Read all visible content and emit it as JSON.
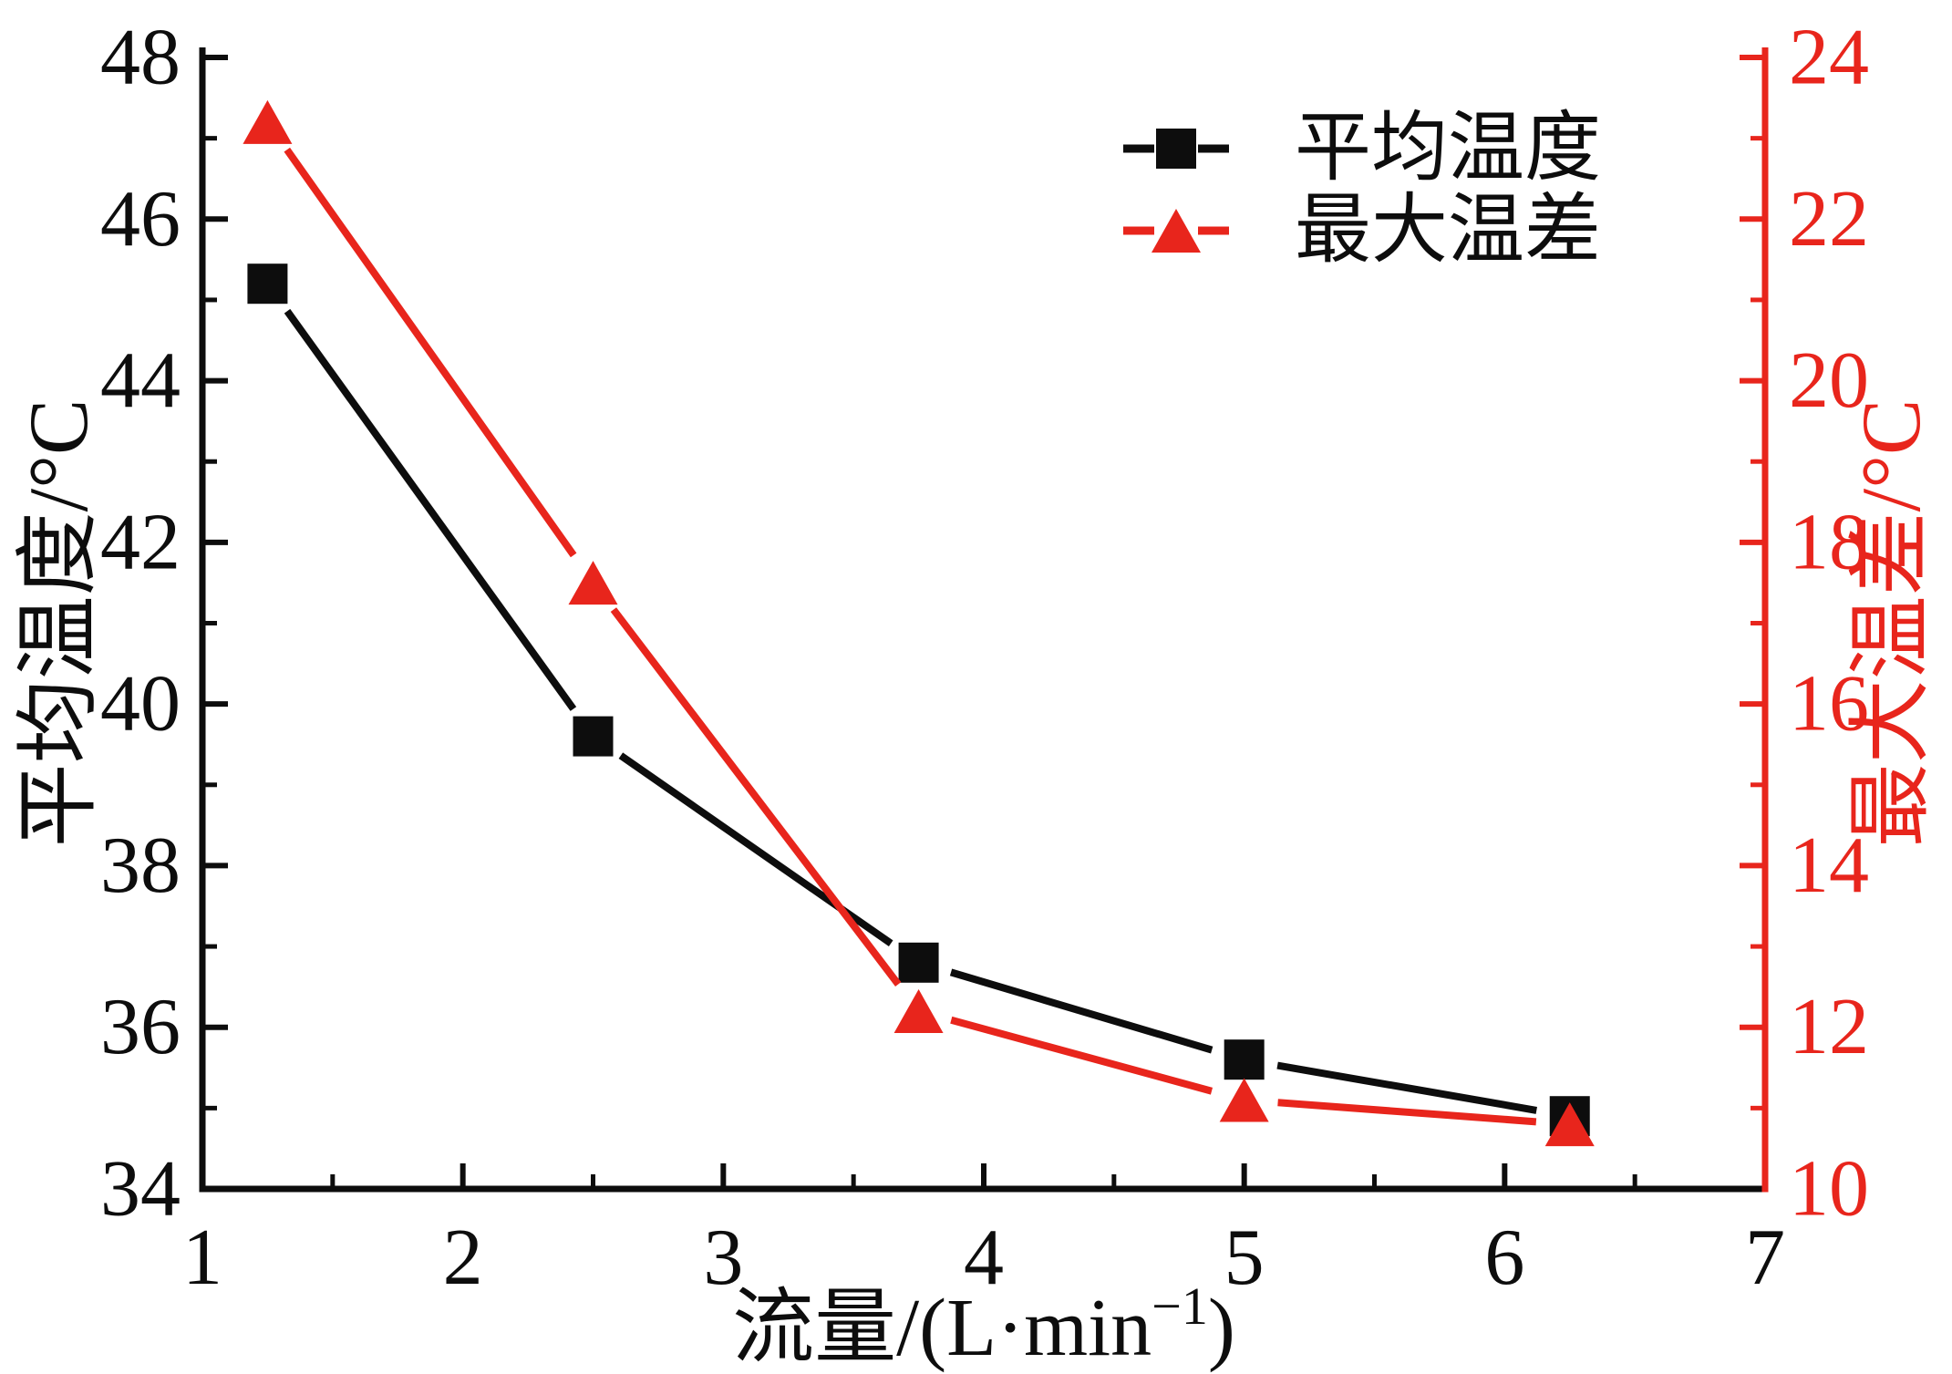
{
  "chart_data": {
    "type": "line",
    "x": [
      1.25,
      2.5,
      3.75,
      5.0,
      6.25
    ],
    "series": [
      {
        "name": "平均温度",
        "axis": "left",
        "marker": "square",
        "color": "#0d0d0d",
        "values": [
          45.2,
          39.6,
          36.8,
          35.6,
          34.9
        ]
      },
      {
        "name": "最大温差",
        "axis": "right",
        "marker": "triangle",
        "color": "#e8251c",
        "values": [
          23.2,
          17.5,
          12.2,
          11.1,
          10.8
        ]
      }
    ],
    "axes": {
      "x": {
        "title_main": "流量/(L·min",
        "title_sup": "−1",
        "title_close": ")",
        "min": 1,
        "max": 7,
        "major_ticks": [
          1,
          2,
          3,
          4,
          5,
          6,
          7
        ],
        "minor_ticks": [
          1.5,
          2.5,
          3.5,
          4.5,
          5.5,
          6.5
        ],
        "color": "#0d0d0d"
      },
      "left": {
        "title": "平均温度/°C",
        "min": 34,
        "max": 48,
        "major_ticks": [
          48,
          46,
          44,
          42,
          40,
          38,
          36,
          34
        ],
        "minor_ticks": [
          47,
          45,
          43,
          41,
          39,
          37,
          35
        ],
        "color": "#0d0d0d"
      },
      "right": {
        "title": "最大温差/°C",
        "min": 10,
        "max": 24,
        "major_ticks": [
          24,
          22,
          20,
          18,
          16,
          14,
          12,
          10
        ],
        "minor_ticks": [
          23,
          21,
          19,
          17,
          15,
          13,
          11
        ],
        "color": "#e8251c"
      }
    },
    "legend": {
      "position": "top-right",
      "entries": [
        {
          "label": "平均温度"
        },
        {
          "label": "最大温差"
        }
      ]
    },
    "grid": false,
    "title": ""
  }
}
